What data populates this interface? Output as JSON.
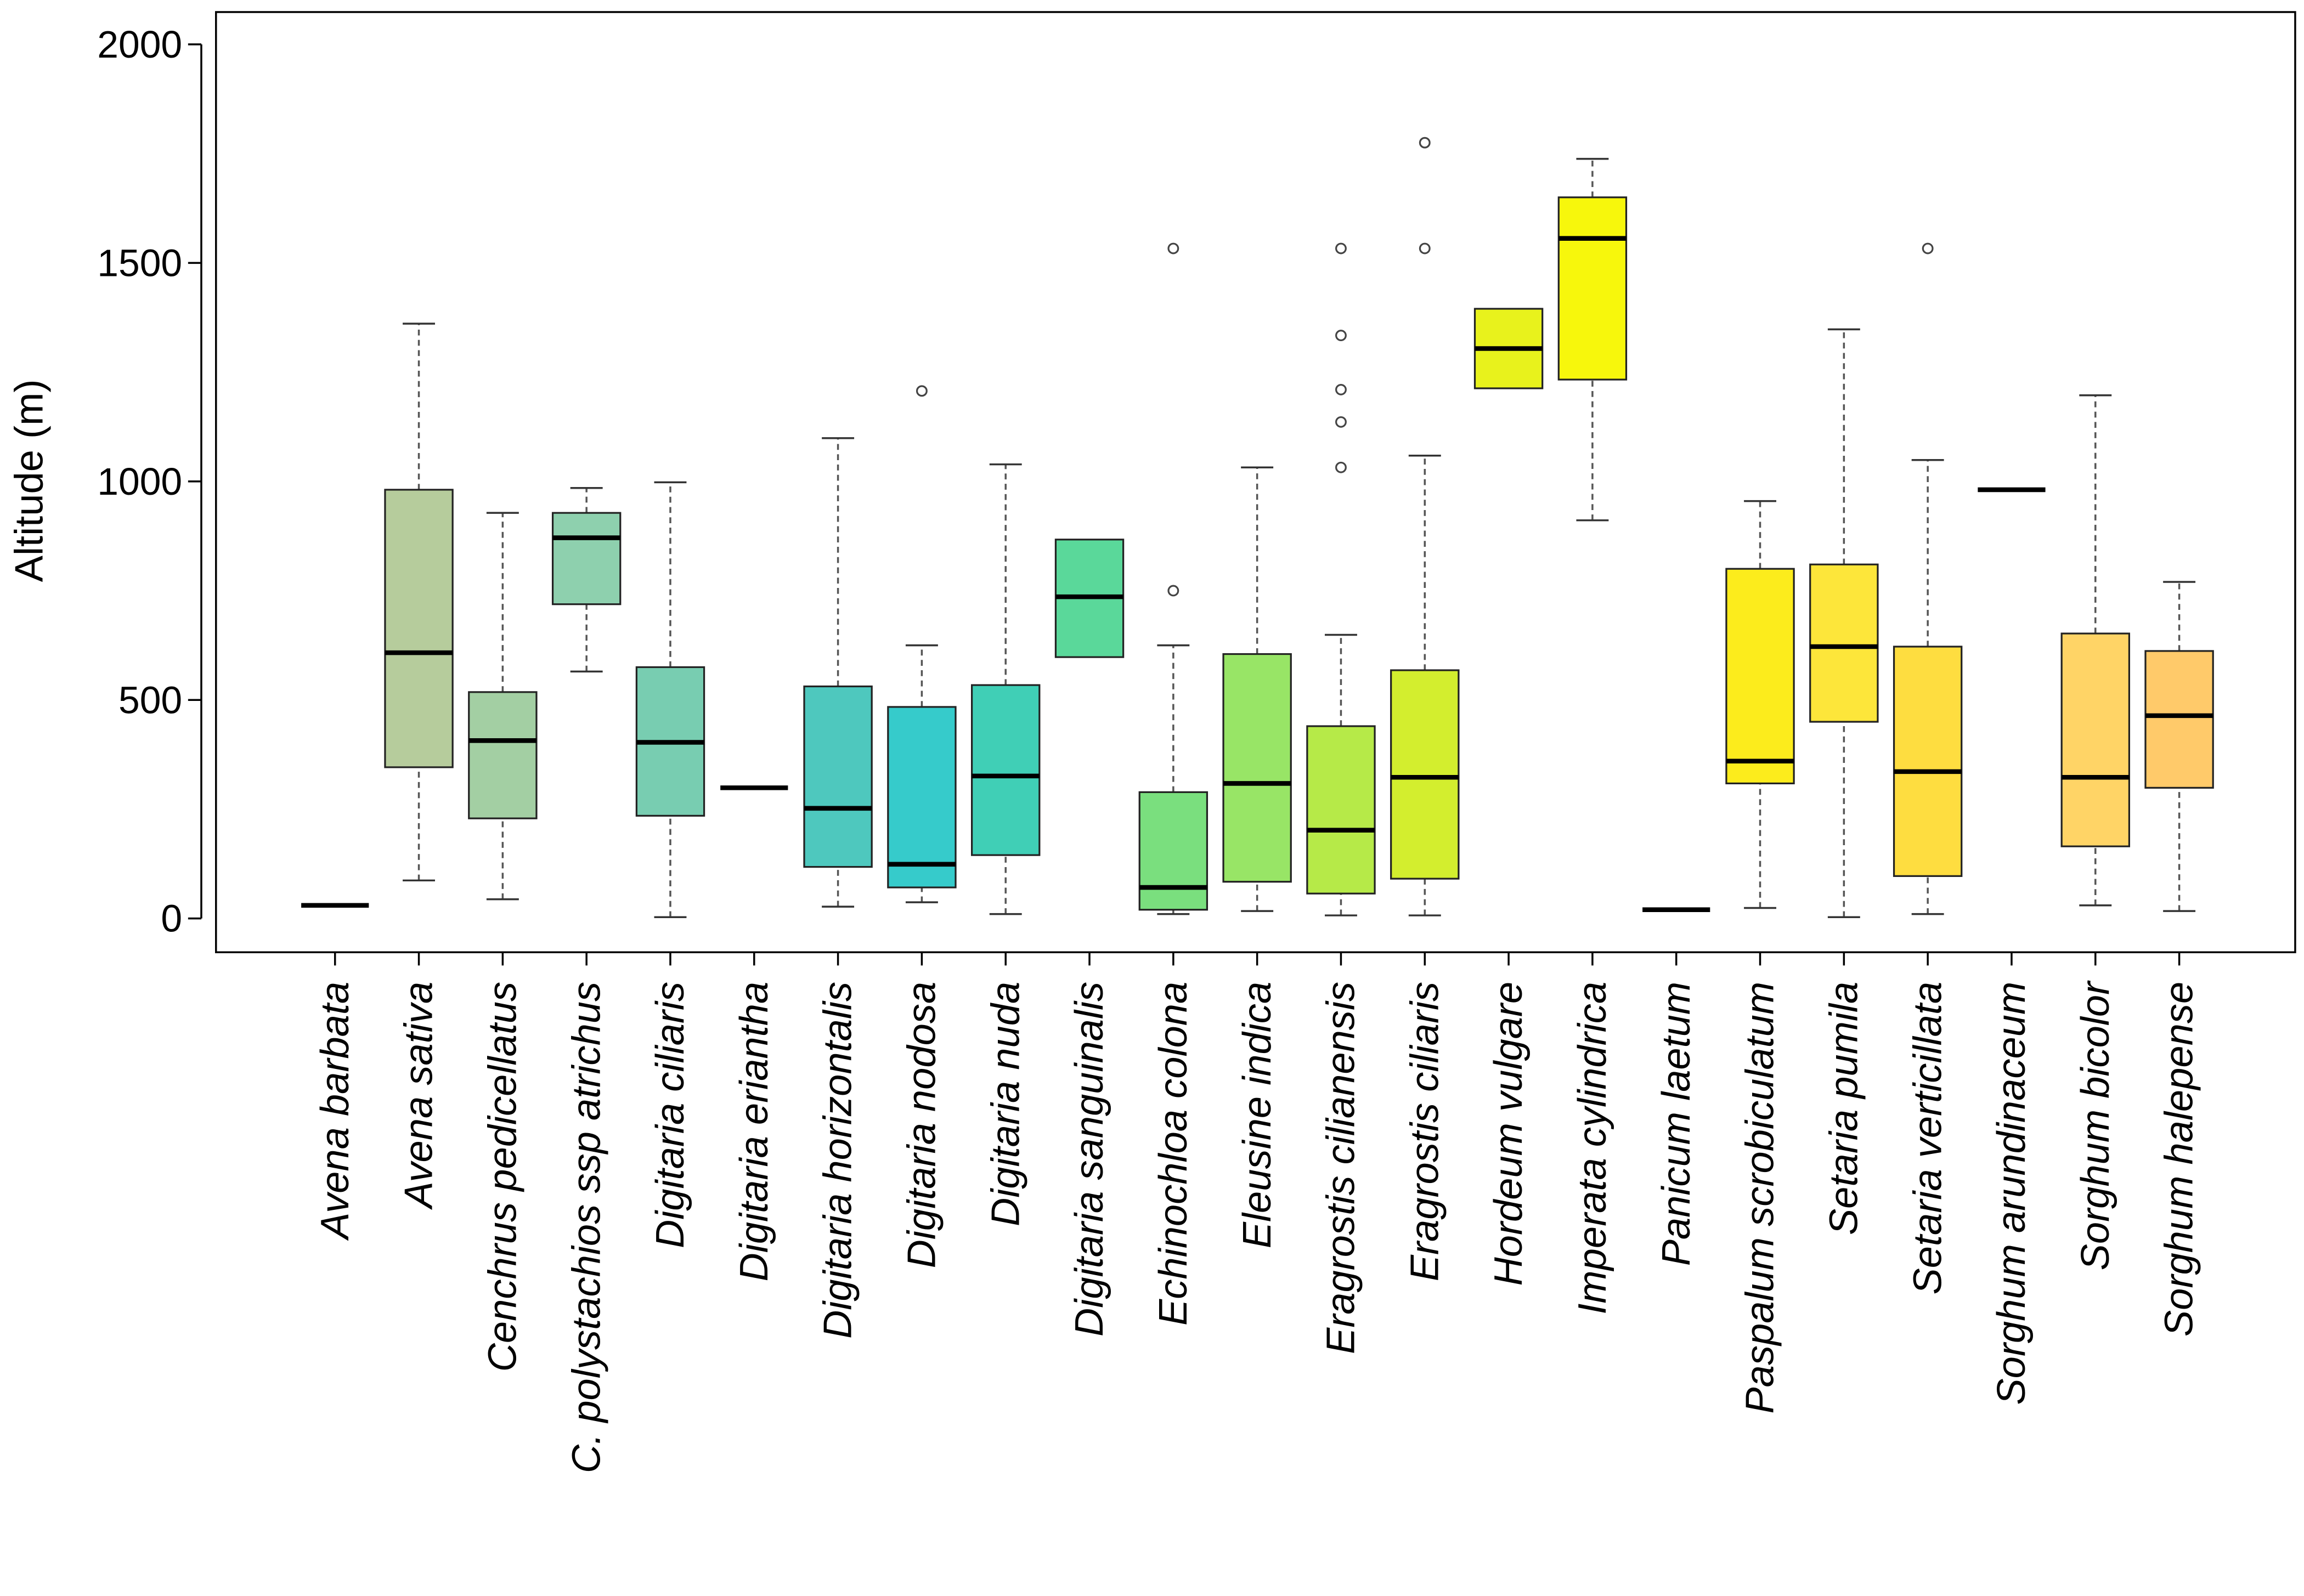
{
  "chart_data": {
    "type": "boxplot",
    "title": "",
    "xlabel": "",
    "ylabel": "Altitude (m)",
    "ylim": [
      -75,
      2075
    ],
    "yticks": [
      0,
      500,
      1000,
      1500,
      2000
    ],
    "ytick_labels": [
      "0",
      "500",
      "1000",
      "1500",
      "2000"
    ],
    "grid": false,
    "categories": [
      {
        "name": "Avena barbata",
        "color": "#000000",
        "whislo": 30,
        "q1": 30,
        "med": 30,
        "q3": 30,
        "whishi": 30,
        "fliers": []
      },
      {
        "name": "Avena sativa",
        "color": "#b6cc9c",
        "whislo": 87,
        "q1": 346,
        "med": 608,
        "q3": 981,
        "whishi": 1361,
        "fliers": []
      },
      {
        "name": "Cenchrus pedicellatus",
        "color": "#a3cfa3",
        "whislo": 44,
        "q1": 229,
        "med": 407,
        "q3": 518,
        "whishi": 928,
        "fliers": []
      },
      {
        "name": "C. polystachios ssp atrichus",
        "color": "#8ed0ae",
        "whislo": 565,
        "q1": 719,
        "med": 871,
        "q3": 928,
        "whishi": 985,
        "fliers": []
      },
      {
        "name": "Digitaria ciliaris",
        "color": "#78cdb1",
        "whislo": 3,
        "q1": 235,
        "med": 403,
        "q3": 575,
        "whishi": 998,
        "fliers": []
      },
      {
        "name": "Digitaria eriantha",
        "color": "#000000",
        "whislo": 299,
        "q1": 299,
        "med": 299,
        "q3": 299,
        "whishi": 299,
        "fliers": []
      },
      {
        "name": "Digitaria horizontalis",
        "color": "#4ec8be",
        "whislo": 27,
        "q1": 118,
        "med": 252,
        "q3": 531,
        "whishi": 1099,
        "fliers": []
      },
      {
        "name": "Digitaria nodosa",
        "color": "#36cbcb",
        "whislo": 37,
        "q1": 71,
        "med": 124,
        "q3": 484,
        "whishi": 625,
        "fliers": [
          1207
        ]
      },
      {
        "name": "Digitaria nuda",
        "color": "#40cfb6",
        "whislo": 10,
        "q1": 145,
        "med": 326,
        "q3": 534,
        "whishi": 1039,
        "fliers": []
      },
      {
        "name": "Digitaria sanguinalis",
        "color": "#5ad89a",
        "whislo": 598,
        "q1": 598,
        "med": 736,
        "q3": 867,
        "whishi": 867,
        "fliers": []
      },
      {
        "name": "Echinochloa colona",
        "color": "#7adf7e",
        "whislo": 10,
        "q1": 20,
        "med": 71,
        "q3": 289,
        "whishi": 625,
        "fliers": [
          750,
          1533
        ]
      },
      {
        "name": "Eleusine indica",
        "color": "#98e566",
        "whislo": 17,
        "q1": 84,
        "med": 309,
        "q3": 605,
        "whishi": 1032,
        "fliers": []
      },
      {
        "name": "Eragrostis cilianensis",
        "color": "#b6ea48",
        "whislo": 7,
        "q1": 57,
        "med": 202,
        "q3": 440,
        "whishi": 649,
        "fliers": [
          1032,
          1136,
          1210,
          1334,
          1533
        ]
      },
      {
        "name": "Eragrostis ciliaris",
        "color": "#d3ee2e",
        "whislo": 7,
        "q1": 91,
        "med": 323,
        "q3": 568,
        "whishi": 1059,
        "fliers": [
          1533,
          1775
        ]
      },
      {
        "name": "Hordeum vulgare",
        "color": "#e8f21c",
        "whislo": 1213,
        "q1": 1213,
        "med": 1304,
        "q3": 1395,
        "whishi": 1395,
        "fliers": []
      },
      {
        "name": "Imperata cylindrica",
        "color": "#f7f70c",
        "whislo": 911,
        "q1": 1233,
        "med": 1556,
        "q3": 1650,
        "whishi": 1738,
        "fliers": []
      },
      {
        "name": "Panicum laetum",
        "color": "#000000",
        "whislo": 20,
        "q1": 20,
        "med": 20,
        "q3": 20,
        "whishi": 20,
        "fliers": []
      },
      {
        "name": "Paspalum scrobiculatum",
        "color": "#fcec1c",
        "whislo": 24,
        "q1": 309,
        "med": 360,
        "q3": 800,
        "whishi": 955,
        "fliers": []
      },
      {
        "name": "Setaria pumila",
        "color": "#fde63a",
        "whislo": 3,
        "q1": 450,
        "med": 622,
        "q3": 810,
        "whishi": 1348,
        "fliers": []
      },
      {
        "name": "Setaria verticillata",
        "color": "#fedd40",
        "whislo": 10,
        "q1": 97,
        "med": 336,
        "q3": 622,
        "whishi": 1049,
        "fliers": [
          1533
        ]
      },
      {
        "name": "Sorghum arundinaceum",
        "color": "#000000",
        "whislo": 981,
        "q1": 981,
        "med": 981,
        "q3": 981,
        "whishi": 981,
        "fliers": []
      },
      {
        "name": "Sorghum bicolor",
        "color": "#ffd466",
        "whislo": 30,
        "q1": 165,
        "med": 323,
        "q3": 652,
        "whishi": 1197,
        "fliers": []
      },
      {
        "name": "Sorghum halepense",
        "color": "#ffca6a",
        "whislo": 17,
        "q1": 299,
        "med": 464,
        "q3": 612,
        "whishi": 770,
        "fliers": []
      }
    ]
  }
}
